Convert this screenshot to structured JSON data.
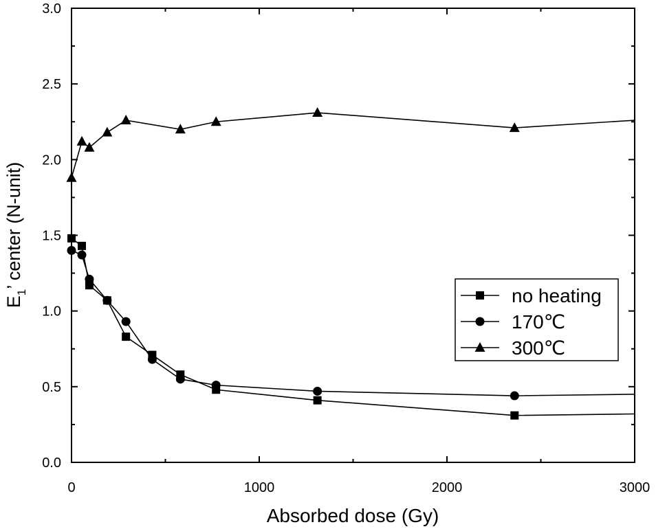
{
  "chart_data": {
    "type": "line",
    "xlabel": "Absorbed dose (Gy)",
    "ylabel_main": "E",
    "ylabel_sub": "1",
    "ylabel_rest": "’ center (N-unit)",
    "xlim": [
      0,
      3000
    ],
    "ylim": [
      0.0,
      3.0
    ],
    "x_ticks": [
      0,
      1000,
      2000,
      3000
    ],
    "x_tick_labels": [
      "0",
      "1000",
      "2000",
      "3000"
    ],
    "y_ticks": [
      0.0,
      0.5,
      1.0,
      1.5,
      2.0,
      2.5,
      3.0
    ],
    "y_tick_labels": [
      "0.0",
      "0.5",
      "1.0",
      "1.5",
      "2.0",
      "2.5",
      "3.0"
    ],
    "grid": false,
    "legend_position": "right-middle",
    "series": [
      {
        "name": "no heating",
        "marker": "square",
        "x": [
          0,
          55,
          95,
          190,
          290,
          430,
          580,
          770,
          1310,
          2360,
          3000
        ],
        "y": [
          1.48,
          1.43,
          1.17,
          1.07,
          0.83,
          0.71,
          0.58,
          0.48,
          0.41,
          0.31,
          0.32
        ]
      },
      {
        "name": "170℃",
        "marker": "circle",
        "x": [
          0,
          55,
          95,
          190,
          290,
          430,
          580,
          770,
          1310,
          2360,
          3000
        ],
        "y": [
          1.4,
          1.37,
          1.21,
          1.07,
          0.93,
          0.68,
          0.55,
          0.51,
          0.47,
          0.44,
          0.45
        ]
      },
      {
        "name": "300℃",
        "marker": "triangle",
        "x": [
          0,
          55,
          95,
          190,
          290,
          580,
          770,
          1310,
          2360,
          3000
        ],
        "y": [
          1.88,
          2.12,
          2.08,
          2.18,
          2.26,
          2.2,
          2.25,
          2.31,
          2.21,
          2.26
        ]
      }
    ]
  }
}
